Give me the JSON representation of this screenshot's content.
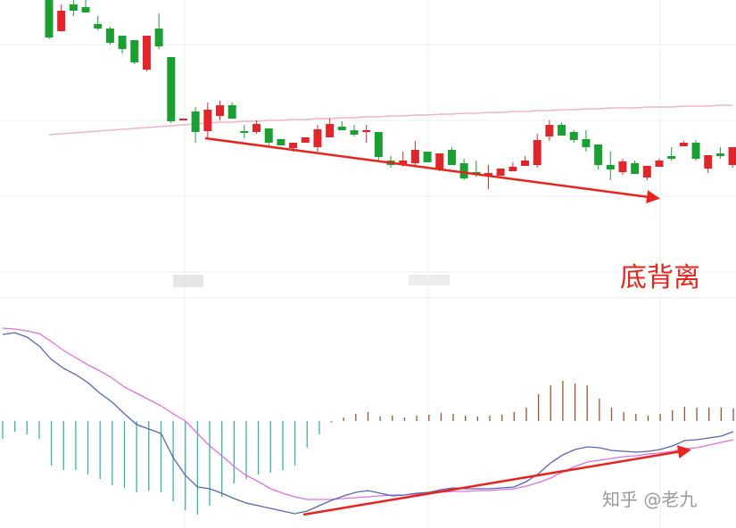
{
  "chart_data": [
    {
      "type": "candlestick",
      "categories": [
        null,
        null,
        null,
        null,
        null,
        null,
        null,
        null,
        null,
        null,
        null,
        null,
        null,
        null,
        null,
        null,
        null,
        null,
        null,
        null,
        null,
        null,
        null,
        null,
        null,
        null,
        null,
        null,
        null,
        null,
        null,
        null,
        null,
        null,
        null,
        null,
        null,
        null,
        null,
        null,
        null,
        null,
        null,
        null,
        null,
        null,
        null,
        null,
        null,
        null,
        null,
        null,
        null,
        null,
        null,
        null,
        null
      ],
      "open": [
        300,
        265,
        295,
        292,
        273,
        268,
        260,
        255,
        222,
        268,
        236,
        165,
        175,
        153,
        170,
        182,
        153,
        152,
        156,
        144,
        134,
        140,
        135,
        146,
        158,
        154,
        152,
        152,
        120,
        116,
        117,
        130,
        111,
        132,
        117,
        107,
        103,
        103,
        108,
        114,
        115,
        147,
        160,
        152,
        144,
        138,
        115,
        107,
        117,
        101,
        113,
        125,
        136,
        140,
        111,
        128,
        115
      ],
      "close": [
        258,
        288,
        288,
        286,
        268,
        252,
        245,
        230,
        260,
        248,
        164,
        167,
        152,
        177,
        182,
        167,
        151,
        161,
        140,
        137,
        140,
        146,
        155,
        161,
        154,
        149,
        154,
        124,
        115,
        120,
        132,
        118,
        128,
        115,
        100,
        104,
        106,
        111,
        113,
        120,
        143,
        160,
        148,
        143,
        135,
        115,
        110,
        119,
        105,
        114,
        120,
        122,
        140,
        122,
        126,
        125,
        135
      ],
      "high": [
        300,
        295,
        300,
        300,
        282,
        270,
        260,
        255,
        260,
        285,
        236,
        167,
        180,
        185,
        187,
        185,
        160,
        165,
        156,
        144,
        140,
        146,
        160,
        167,
        164,
        160,
        160,
        152,
        125,
        130,
        142,
        130,
        128,
        135,
        122,
        120,
        115,
        111,
        118,
        125,
        150,
        165,
        163,
        154,
        154,
        138,
        130,
        122,
        120,
        114,
        122,
        135,
        142,
        143,
        126,
        135,
        135
      ],
      "low": [
        256,
        265,
        282,
        286,
        266,
        250,
        240,
        228,
        220,
        245,
        162,
        165,
        140,
        145,
        165,
        167,
        145,
        150,
        135,
        137,
        130,
        140,
        130,
        146,
        154,
        147,
        140,
        120,
        112,
        113,
        114,
        118,
        108,
        115,
        98,
        102,
        88,
        103,
        108,
        114,
        112,
        142,
        148,
        140,
        130,
        110,
        98,
        104,
        105,
        98,
        113,
        120,
        136,
        120,
        106,
        122,
        112
      ],
      "up_color": "#e0262a",
      "down_color": "#1aa032",
      "ma": {
        "color": "#f0b4c4",
        "values": [
          149,
          150,
          151,
          152,
          153,
          154,
          155,
          156,
          157,
          158,
          159,
          160,
          161,
          162,
          163,
          163,
          164,
          164,
          165,
          165,
          166,
          166,
          167,
          167,
          168,
          168,
          169,
          169,
          170,
          170,
          171,
          171,
          172,
          172,
          173,
          173,
          174,
          174,
          175,
          175,
          176,
          176,
          177,
          177,
          178,
          178,
          179,
          179,
          179,
          180,
          180,
          180,
          181,
          181,
          181,
          182,
          182
        ]
      },
      "ylim": [
        0,
        300
      ],
      "annotation": "底背离"
    },
    {
      "type": "macd",
      "categories": [
        null,
        null,
        null,
        null,
        null,
        null,
        null,
        null,
        null,
        null,
        null,
        null,
        null,
        null,
        null,
        null,
        null,
        null,
        null,
        null,
        null,
        null,
        null,
        null,
        null,
        null,
        null,
        null,
        null,
        null,
        null,
        null,
        null,
        null,
        null,
        null,
        null,
        null,
        null,
        null,
        null,
        null,
        null,
        null,
        null,
        null,
        null,
        null,
        null,
        null,
        null,
        null,
        null,
        null,
        null,
        null,
        null,
        null,
        null,
        null,
        null
      ],
      "histogram": {
        "up_color": "#a0522d",
        "down_color": "#3bb0b0",
        "values": [
          -20,
          -12,
          -15,
          -20,
          -50,
          -55,
          -55,
          -60,
          -65,
          -72,
          -75,
          -80,
          -78,
          -80,
          -90,
          -100,
          -105,
          -95,
          -85,
          -70,
          -65,
          -60,
          -58,
          -55,
          -50,
          -30,
          -15,
          -2,
          4,
          8,
          10,
          5,
          6,
          4,
          6,
          7,
          9,
          8,
          6,
          5,
          6,
          7,
          10,
          15,
          30,
          40,
          45,
          42,
          40,
          25,
          15,
          10,
          8,
          6,
          8,
          12,
          16,
          15,
          15,
          15,
          14
        ]
      },
      "dif": {
        "color": "#5566b0",
        "values": [
          97,
          99,
          94,
          84,
          69,
          59,
          52,
          43,
          31,
          21,
          8,
          -4,
          -9,
          -14,
          -41,
          -61,
          -74,
          -76,
          -81,
          -87,
          -92,
          -95,
          -98,
          -101,
          -104,
          -101,
          -95,
          -89,
          -84,
          -80,
          -78,
          -81,
          -84,
          -83,
          -81,
          -80,
          -77,
          -75,
          -76,
          -76,
          -76,
          -75,
          -74,
          -68,
          -59,
          -47,
          -38,
          -32,
          -29,
          -30,
          -33,
          -34,
          -35,
          -34,
          -32,
          -28,
          -22,
          -21,
          -19,
          -17,
          -12
        ]
      },
      "dea": {
        "color": "#dd70dd",
        "values": [
          104,
          103,
          101,
          98,
          89,
          79,
          71,
          63,
          56,
          48,
          38,
          31,
          24,
          17,
          8,
          0,
          -14,
          -28,
          -39,
          -51,
          -61,
          -68,
          -76,
          -81,
          -85,
          -88,
          -88,
          -88,
          -87,
          -86,
          -85,
          -84,
          -83,
          -83,
          -82,
          -81,
          -80,
          -79,
          -79,
          -78,
          -78,
          -77,
          -76,
          -73,
          -69,
          -64,
          -57,
          -51,
          -46,
          -44,
          -42,
          -40,
          -39,
          -37,
          -36,
          -34,
          -31,
          -30,
          -27,
          -24,
          -21
        ]
      },
      "ylim": [
        -120,
        137
      ],
      "watermark": "知乎 @老九"
    }
  ]
}
